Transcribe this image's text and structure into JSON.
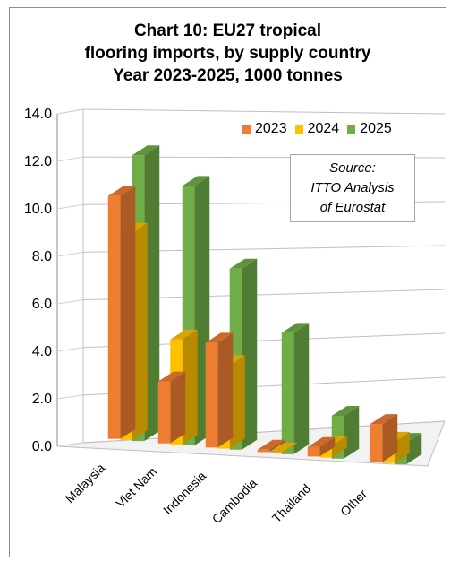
{
  "chart_data": {
    "type": "bar",
    "title_lines": [
      "Chart 10: EU27 tropical",
      "flooring imports, by supply country",
      "Year 2023-2025, 1000 tonnes"
    ],
    "categories": [
      "Malaysia",
      "Viet Nam",
      "Indonesia",
      "Cambodia",
      "Thailand",
      "Other"
    ],
    "series": [
      {
        "name": "2023",
        "color": "#ed7d31",
        "values": [
          10.2,
          2.6,
          4.4,
          0.1,
          0.4,
          1.6
        ]
      },
      {
        "name": "2024",
        "color": "#ffc000",
        "values": [
          8.7,
          4.4,
          3.5,
          0.0,
          0.5,
          0.9
        ]
      },
      {
        "name": "2025",
        "color": "#70ad47",
        "values": [
          12.0,
          10.9,
          7.6,
          5.1,
          1.8,
          0.9
        ]
      }
    ],
    "y_ticks": [
      "0.0",
      "2.0",
      "4.0",
      "6.0",
      "8.0",
      "10.0",
      "12.0",
      "14.0"
    ],
    "ylim": [
      0,
      14
    ],
    "grid": true,
    "legend_position": "top-right",
    "source_lines": [
      "Source:",
      "ITTO Analysis",
      "of Eurostat"
    ]
  }
}
